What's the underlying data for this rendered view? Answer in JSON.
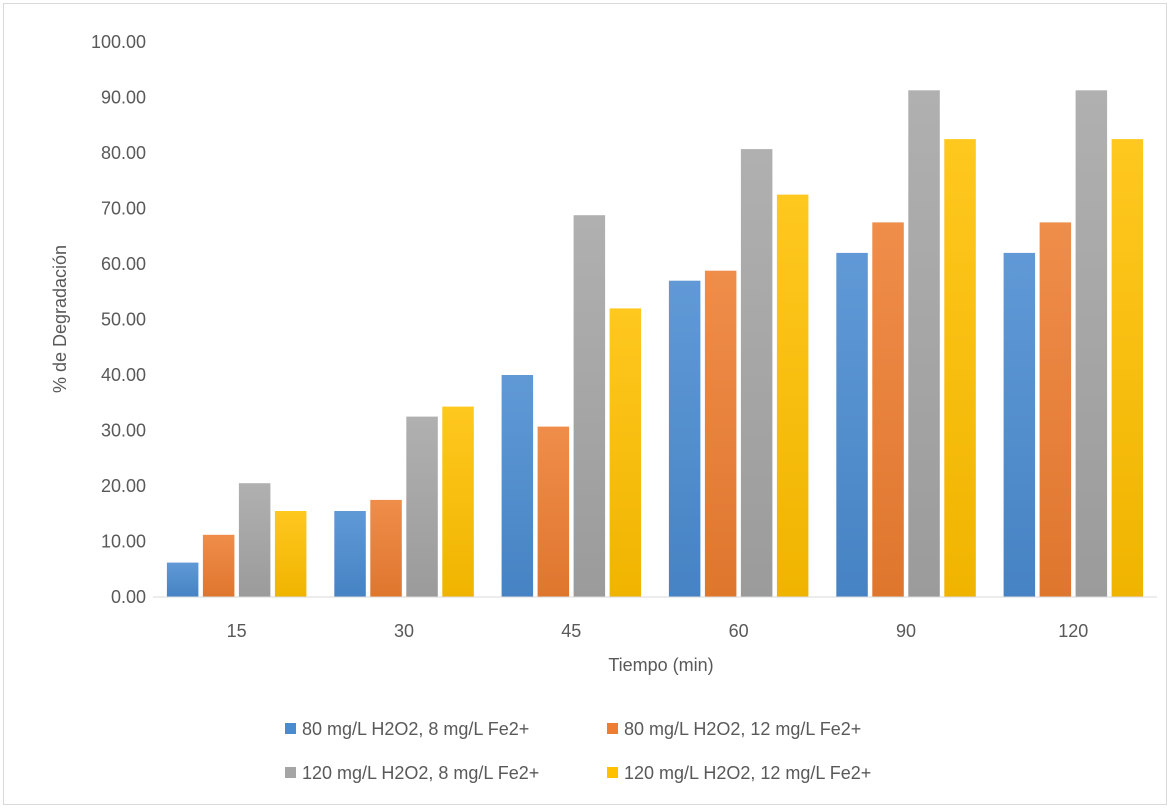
{
  "chart_data": {
    "type": "bar",
    "title": "",
    "xlabel": "Tiempo (min)",
    "ylabel": "% de Degradación",
    "ylim": [
      0,
      100
    ],
    "yticks": [
      "0.00",
      "10.00",
      "20.00",
      "30.00",
      "40.00",
      "50.00",
      "60.00",
      "70.00",
      "80.00",
      "90.00",
      "100.00"
    ],
    "grid": false,
    "legend_position": "bottom",
    "categories": [
      "15",
      "30",
      "45",
      "60",
      "90",
      "120"
    ],
    "series": [
      {
        "name": "80 mg/L H2O2, 8 mg/L Fe2+",
        "color": "#4a8bd0",
        "values": [
          6.2,
          15.5,
          40.0,
          57.0,
          62.0,
          62.0
        ]
      },
      {
        "name": "80 mg/L H2O2, 12 mg/L Fe2+",
        "color": "#ed7d31",
        "values": [
          11.2,
          17.5,
          30.7,
          58.8,
          67.5,
          67.5
        ]
      },
      {
        "name": "120 mg/L H2O2, 8 mg/L Fe2+",
        "color": "#a5a5a5",
        "values": [
          20.5,
          32.5,
          68.8,
          80.7,
          91.3,
          91.3
        ]
      },
      {
        "name": "120 mg/L H2O2, 12 mg/L Fe2+",
        "color": "#ffc000",
        "values": [
          15.5,
          34.3,
          52.0,
          72.5,
          82.5,
          82.5
        ]
      }
    ]
  }
}
